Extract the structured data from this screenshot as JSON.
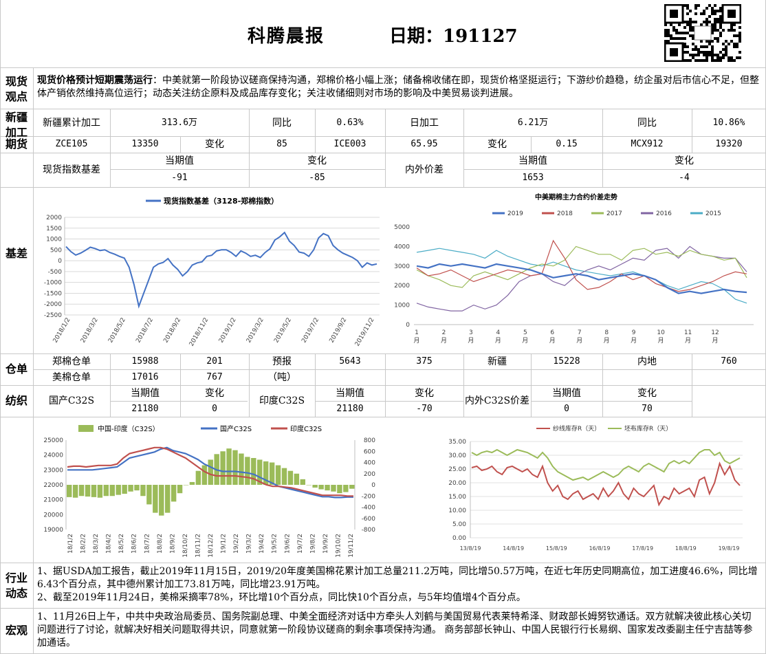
{
  "header": {
    "brand": "科腾晨报",
    "date_label": "日期：191127"
  },
  "spot_view": {
    "section": "现货观点",
    "headline": "现货价格预计短期震荡运行",
    "body": "：中美就第一阶段协议磋商保持沟通，郑棉价格小幅上涨；储备棉收储在即，现货价格坚挺运行；下游纱价趋稳，纺企虽对后市信心不足，但整体产销依然维持高位运行；动态关注纺企原料及成品库存变化；关注收储细则对市场的影响及中美贸易谈判进展。"
  },
  "xinjiang": {
    "section": "新疆加工",
    "label1": "新疆累计加工",
    "value1": "313.6万",
    "yoy_label1": "同比",
    "yoy1": "0.63%",
    "label2": "日加工",
    "value2": "6.21万",
    "yoy_label2": "同比",
    "yoy2": "10.86%"
  },
  "futures": {
    "section": "期货",
    "c1": "ZCE105",
    "v1": "13350",
    "chg_label1": "变化",
    "chg1": "85",
    "c2": "ICE003",
    "v2": "65.95",
    "chg_label2": "变化",
    "chg2": "0.15",
    "c3": "MCX912",
    "v3": "19320"
  },
  "basis": {
    "section": "基差",
    "label1": "现货指数基差",
    "cur_label1": "当期值",
    "chg_label1": "变化",
    "cur1": "-91",
    "chg1": "-85",
    "label2": "内外价差",
    "cur_label2": "当期值",
    "chg_label2": "变化",
    "cur2": "1653",
    "chg2": "-4"
  },
  "warehouse": {
    "section": "仓单",
    "zc_label": "郑棉仓单",
    "zc_val": "15988",
    "zc_chg": "201",
    "us_label": "美棉仓单",
    "us_val": "17016",
    "us_chg": "767",
    "fc_label": "预报",
    "fc_unit": "（吨）",
    "fc_val": "5643",
    "fc_chg": "375",
    "xj_label": "新疆",
    "xj_val": "15228",
    "nd_label": "内地",
    "nd_val": "760"
  },
  "spinning": {
    "section": "纺织",
    "dom_label": "国产C32S",
    "dom_cur_label": "当期值",
    "dom_chg_label": "变化",
    "dom_cur": "21180",
    "dom_chg": "0",
    "ind_label": "印度C32S",
    "ind_cur_label": "当期值",
    "ind_chg_label": "变化",
    "ind_cur": "21180",
    "ind_chg": "-70",
    "spr_label": "内外C32S价差",
    "spr_cur_label": "当期值",
    "spr_chg_label": "变化",
    "spr_cur": "0",
    "spr_chg": "70"
  },
  "industry": {
    "section": "行业动态",
    "p1": "1、据USDA加工报告，截止2019年11月15日，2019/20年度美国棉花累计加工总量211.2万吨，同比增50.57万吨，在近七年历史同期高位，加工进度46.6%，同比增6.43个百分点，其中德州累计加工73.81万吨，同比增23.91万吨。",
    "p2": "2、截至2019年11月24日，美棉采摘率78%，环比增10个百分点，同比快10个百分点，与5年均值增4个百分点。"
  },
  "macro": {
    "section": "宏观",
    "p1": "1、11月26日上午，中共中央政治局委员、国务院副总理、中美全面经济对话中方牵头人刘鹤与美国贸易代表莱特希泽、财政部长姆努钦通话。双方就解决彼此核心关切问题进行了讨论，就解决好相关问题取得共识，同意就第一阶段协议磋商的剩余事项保持沟通。 商务部部长钟山、中国人民银行行长易纲、国家发改委副主任宁吉喆等参加通话。"
  },
  "chart_data": [
    {
      "type": "line",
      "title": "",
      "series": [
        {
          "name": "现货指数基差（3128-郑棉指数）",
          "color": "#4472c4",
          "values": [
            650,
            420,
            260,
            350,
            480,
            620,
            560,
            470,
            500,
            380,
            300,
            200,
            120,
            -300,
            -1100,
            -2100,
            -1500,
            -900,
            -300,
            -150,
            -80,
            100,
            -200,
            -400,
            -700,
            -500,
            -200,
            -100,
            -50,
            200,
            250,
            450,
            500,
            500,
            380,
            200,
            450,
            350,
            200,
            250,
            150,
            380,
            550,
            950,
            1100,
            1300,
            900,
            700,
            400,
            350,
            200,
            500,
            1050,
            1250,
            1150,
            700,
            500,
            350,
            250,
            150,
            0,
            -300,
            -100,
            -200,
            -150
          ]
        }
      ],
      "x_ticks": [
        "2018/1/2",
        "2018/3/2",
        "2018/5/2",
        "2018/7/2",
        "2018/9/2",
        "2018/11/2",
        "2019/1/2",
        "2019/3/2",
        "2019/5/2",
        "2019/7/2",
        "2019/9/2",
        "2019/11/2"
      ],
      "ylim": [
        -2500,
        2000
      ],
      "y_ticks": [
        2000,
        1500,
        1000,
        500,
        0,
        -500,
        -1000,
        -1500,
        -2000,
        -2500
      ]
    },
    {
      "type": "line",
      "title": "中美期棉主力合约价差走势",
      "x_ticks": [
        "1月",
        "2月",
        "3月",
        "4月",
        "5月",
        "6月",
        "7月",
        "8月",
        "9月",
        "10月",
        "11月",
        "12月"
      ],
      "ylim": [
        0,
        5000
      ],
      "y_ticks": [
        5000,
        4000,
        3000,
        2000,
        1000,
        0
      ],
      "series": [
        {
          "name": "2019",
          "color": "#4472c4",
          "values": [
            3000,
            2900,
            3100,
            3000,
            3100,
            3000,
            2900,
            3100,
            3000,
            2900,
            2800,
            2600,
            2400,
            2500,
            2600,
            2500,
            2300,
            2400,
            2500,
            2600,
            2500,
            2300,
            1900,
            1600,
            1700,
            1600,
            1700,
            1800,
            1700,
            1650
          ]
        },
        {
          "name": "2018",
          "color": "#c0504d",
          "values": [
            2900,
            2500,
            2600,
            2800,
            2500,
            2200,
            2400,
            2600,
            2800,
            2700,
            2500,
            2600,
            4300,
            3400,
            2300,
            1800,
            1900,
            2200,
            2600,
            2300,
            2500,
            2100,
            1900,
            1700,
            1800,
            2000,
            2200,
            2500,
            2700,
            2600
          ]
        },
        {
          "name": "2017",
          "color": "#9bbb59",
          "values": [
            2800,
            2500,
            2300,
            2000,
            1900,
            2500,
            2700,
            2500,
            2300,
            2600,
            2900,
            3100,
            3000,
            3300,
            4000,
            3800,
            3600,
            3600,
            3300,
            3800,
            3900,
            3600,
            3700,
            3500,
            3800,
            3600,
            3500,
            3300,
            3400,
            2400
          ]
        },
        {
          "name": "2016",
          "color": "#8064a2",
          "values": [
            1100,
            900,
            800,
            700,
            700,
            1000,
            800,
            1000,
            1500,
            2200,
            2500,
            2600,
            2200,
            2000,
            2500,
            2800,
            3000,
            2800,
            3100,
            3400,
            3300,
            3800,
            3900,
            3400,
            4000,
            3600,
            3500,
            3400,
            3400,
            2700
          ]
        },
        {
          "name": "2015",
          "color": "#4bacc6",
          "values": [
            3700,
            3800,
            3900,
            3800,
            3700,
            3600,
            3400,
            3800,
            3500,
            3300,
            3100,
            3000,
            3200,
            3000,
            2800,
            2700,
            2600,
            2500,
            2600,
            2700,
            2500,
            2300,
            2000,
            1800,
            2000,
            2200,
            2100,
            1800,
            1300,
            1100
          ]
        }
      ]
    },
    {
      "type": "bar",
      "title": "",
      "x_ticks": [
        "18/1/2",
        "18/2/2",
        "18/3/2",
        "18/4/2",
        "18/5/2",
        "18/6/2",
        "18/7/2",
        "18/8/2",
        "18/9/2",
        "18/10/2",
        "18/11/2",
        "18/12/2",
        "19/1/2",
        "19/2/2",
        "19/3/2",
        "19/4/2",
        "19/5/2",
        "19/6/2",
        "19/7/2",
        "19/8/2",
        "19/9/2",
        "19/10/2",
        "19/11/2"
      ],
      "ylim_left": [
        19000,
        25000
      ],
      "ylim_right": [
        -800,
        800
      ],
      "y_ticks_left": [
        25000,
        24000,
        23000,
        22000,
        21000,
        20000,
        19000
      ],
      "y_ticks_right": [
        800,
        600,
        400,
        200,
        0,
        -200,
        -400,
        -600,
        -800
      ],
      "series": [
        {
          "name": "中国-印度（C32S）",
          "color": "#9bbb59",
          "axis": "right",
          "values": [
            -220,
            -230,
            -200,
            -210,
            -220,
            -230,
            -200,
            -200,
            -180,
            -160,
            -120,
            -100,
            -200,
            -350,
            -500,
            -550,
            -500,
            -300,
            -150,
            0,
            50,
            250,
            350,
            450,
            550,
            600,
            650,
            620,
            560,
            500,
            480,
            450,
            420,
            400,
            350,
            300,
            250,
            200,
            100,
            0,
            -50,
            -80,
            -100,
            -120,
            -150,
            -130,
            -70
          ]
        },
        {
          "name": "国产C32S",
          "color": "#4472c4",
          "axis": "left",
          "values": [
            23000,
            23000,
            23000,
            23000,
            23000,
            23050,
            23100,
            23150,
            23200,
            23500,
            23800,
            23900,
            24000,
            24100,
            24200,
            24400,
            24500,
            24300,
            24200,
            24100,
            23900,
            23700,
            23400,
            23200,
            23000,
            22900,
            22900,
            22900,
            22850,
            22800,
            22700,
            22500,
            22300,
            22100,
            21900,
            21800,
            21700,
            21600,
            21500,
            21400,
            21300,
            21200,
            21200,
            21150,
            21150,
            21180,
            21180
          ]
        },
        {
          "name": "印度C32S",
          "color": "#c0504d",
          "axis": "left",
          "values": [
            23200,
            23250,
            23250,
            23200,
            23250,
            23300,
            23300,
            23300,
            23400,
            23800,
            24100,
            24200,
            24300,
            24400,
            24500,
            24500,
            24400,
            24200,
            24000,
            23800,
            23500,
            23200,
            22900,
            22700,
            22600,
            22600,
            22600,
            22600,
            22550,
            22500,
            22400,
            22200,
            22000,
            21900,
            21900,
            21850,
            21800,
            21700,
            21600,
            21500,
            21400,
            21300,
            21300,
            21300,
            21300,
            21250,
            21250
          ]
        }
      ]
    },
    {
      "type": "line",
      "title": "",
      "x_ticks": [
        "13/8/19",
        "14/8/19",
        "15/8/19",
        "16/8/19",
        "17/8/19",
        "18/8/19",
        "19/8/19"
      ],
      "ylim": [
        0,
        35
      ],
      "y_ticks": [
        "35.00",
        "30.00",
        "25.00",
        "20.00",
        "15.00",
        "10.00",
        "5.00",
        "0.00"
      ],
      "series": [
        {
          "name": "纱线库存R（天）",
          "color": "#c0504d",
          "values": [
            25.5,
            26,
            24.5,
            25,
            26,
            24,
            23,
            25.5,
            26,
            25,
            24,
            25,
            23,
            22,
            26,
            20,
            17,
            19,
            15,
            14,
            16,
            17,
            14,
            15,
            16,
            14,
            18,
            15,
            17,
            20,
            16,
            14,
            18,
            16,
            15,
            17,
            19,
            12,
            15,
            14,
            18,
            16,
            17,
            18,
            15,
            21,
            22,
            16,
            20,
            27,
            23,
            26,
            21,
            19
          ]
        },
        {
          "name": "坯布库存R（天）",
          "color": "#9bbb59",
          "values": [
            31,
            30,
            31,
            31.5,
            31,
            32,
            31,
            30,
            31,
            32,
            31.5,
            31,
            30,
            29,
            31,
            29,
            26,
            24,
            23,
            22,
            21,
            21.5,
            22,
            21,
            22,
            23,
            24,
            23,
            22,
            23,
            25,
            26,
            25,
            24,
            26,
            27,
            26,
            25,
            24,
            27,
            28,
            27,
            28,
            27,
            29,
            31,
            32,
            32,
            30,
            31,
            28,
            27,
            28,
            29
          ]
        }
      ]
    }
  ]
}
